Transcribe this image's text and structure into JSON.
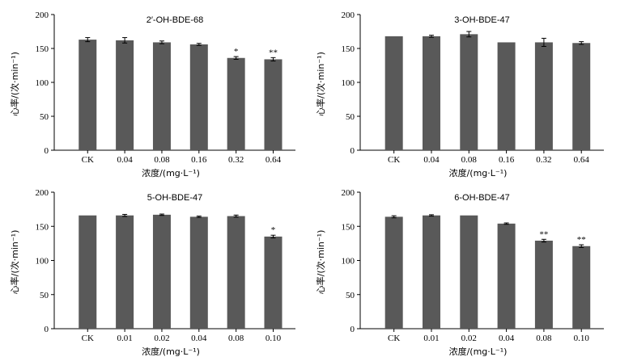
{
  "chart_data": [
    {
      "type": "bar",
      "title": "2′-OH-BDE-68",
      "xlabel": "浓度/(mg·L⁻¹)",
      "ylabel": "心率/(次·min⁻¹)",
      "ylim": [
        0,
        200
      ],
      "yticks": [
        0,
        50,
        100,
        150,
        200
      ],
      "categories": [
        "CK",
        "0.04",
        "0.08",
        "0.16",
        "0.32",
        "0.64"
      ],
      "values": [
        163,
        162,
        159,
        156,
        136,
        134
      ],
      "errors": [
        3,
        4,
        2,
        1.5,
        2,
        2.5
      ],
      "significance": [
        "",
        "",
        "",
        "",
        "*",
        "**"
      ]
    },
    {
      "type": "bar",
      "title": "3-OH-BDE-47",
      "xlabel": "浓度/(mg·L⁻¹)",
      "ylabel": "心率/(次·min⁻¹)",
      "ylim": [
        0,
        200
      ],
      "yticks": [
        0,
        50,
        100,
        150,
        200
      ],
      "categories": [
        "CK",
        "0.04",
        "0.08",
        "0.16",
        "0.32",
        "0.64"
      ],
      "values": [
        168,
        168,
        171,
        159,
        159,
        158
      ],
      "errors": [
        0,
        1.5,
        4,
        0,
        6,
        2
      ],
      "significance": [
        "",
        "",
        "",
        "",
        "",
        ""
      ]
    },
    {
      "type": "bar",
      "title": "5-OH-BDE-47",
      "xlabel": "浓度/(mg·L⁻¹)",
      "ylabel": "心率/(次·min⁻¹)",
      "ylim": [
        0,
        200
      ],
      "yticks": [
        0,
        50,
        100,
        150,
        200
      ],
      "categories": [
        "CK",
        "0.01",
        "0.02",
        "0.04",
        "0.08",
        "0.10"
      ],
      "values": [
        166,
        166,
        167,
        164,
        165,
        135
      ],
      "errors": [
        0,
        1.5,
        1,
        1,
        1.5,
        2
      ],
      "significance": [
        "",
        "",
        "",
        "",
        "",
        "*"
      ]
    },
    {
      "type": "bar",
      "title": "6-OH-BDE-47",
      "xlabel": "浓度/(mg·L⁻¹)",
      "ylabel": "心率/(次·min⁻¹)",
      "ylim": [
        0,
        200
      ],
      "yticks": [
        0,
        50,
        100,
        150,
        200
      ],
      "categories": [
        "CK",
        "0.01",
        "0.02",
        "0.04",
        "0.08",
        "0.10"
      ],
      "values": [
        164,
        166,
        166,
        154,
        129,
        121
      ],
      "errors": [
        1.5,
        1,
        0,
        1,
        2,
        2
      ],
      "significance": [
        "",
        "",
        "",
        "",
        "**",
        "**"
      ]
    }
  ],
  "colors": {
    "bar": "#595959",
    "axis": "#000000"
  }
}
